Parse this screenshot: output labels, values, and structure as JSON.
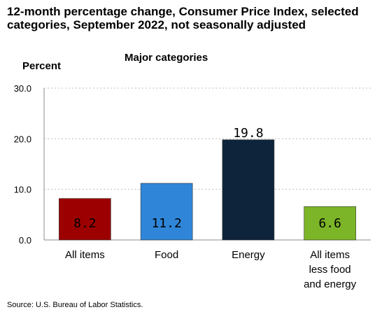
{
  "chart_data": {
    "type": "bar",
    "title": "12-month percentage change, Consumer Price Index, selected categories, September 2022, not seasonally adjusted",
    "subtitle": "Major categories",
    "ylabel": "Percent",
    "xlabel": "",
    "ylim": [
      0,
      30
    ],
    "yticks": [
      "0.0",
      "10.0",
      "20.0",
      "30.0"
    ],
    "ytick_values": [
      0,
      10,
      20,
      30
    ],
    "grid": true,
    "categories": [
      [
        "All items"
      ],
      [
        "Food"
      ],
      [
        "Energy"
      ],
      [
        "All items",
        "less food",
        "and energy"
      ]
    ],
    "values": [
      8.2,
      11.2,
      19.8,
      6.6
    ],
    "data_labels": [
      "8.2",
      "11.2",
      "19.8",
      "6.6"
    ],
    "colors": [
      "#9c0000",
      "#2f86d8",
      "#0d243b",
      "#7cb527"
    ],
    "source": "Source: U.S. Bureau of Labor Statistics."
  }
}
